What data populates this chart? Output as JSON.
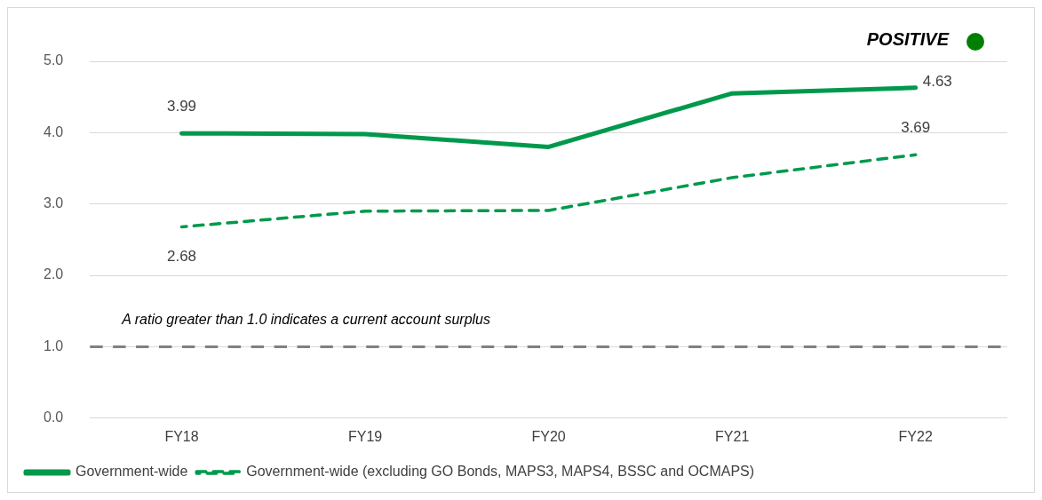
{
  "chart_data": {
    "type": "line",
    "categories": [
      "FY18",
      "FY19",
      "FY20",
      "FY21",
      "FY22"
    ],
    "series": [
      {
        "name": "Government-wide",
        "color": "#00994c",
        "values": [
          3.99,
          3.98,
          3.8,
          4.55,
          4.63
        ],
        "line_style": "solid",
        "value_labels": [
          "3.99",
          null,
          null,
          null,
          "4.63"
        ]
      },
      {
        "name": "Government-wide (excluding GO Bonds, MAPS3, MAPS4, BSSC and OCMAPS)",
        "color": "#00994c",
        "values": [
          2.68,
          2.9,
          2.91,
          3.37,
          3.69
        ],
        "line_style": "dashed",
        "value_labels": [
          "2.68",
          null,
          null,
          null,
          "3.69"
        ]
      }
    ],
    "ylim": [
      0,
      5
    ],
    "yticks": [
      {
        "value": 0,
        "label": "0.0"
      },
      {
        "value": 1,
        "label": "1.0"
      },
      {
        "value": 2,
        "label": "2.0"
      },
      {
        "value": 3,
        "label": "3.0"
      },
      {
        "value": 4,
        "label": "4.0"
      },
      {
        "value": 5,
        "label": "5.0"
      }
    ],
    "grid": "y",
    "legend": "bottom",
    "marker": "none",
    "ref_lines": [
      {
        "axis": "y",
        "value": 1,
        "label": "A ratio greater than 1.0 indicates a current account surplus",
        "color": "#808080",
        "line_style": "dashed"
      }
    ],
    "annotations": [
      "POSITIVE"
    ]
  }
}
